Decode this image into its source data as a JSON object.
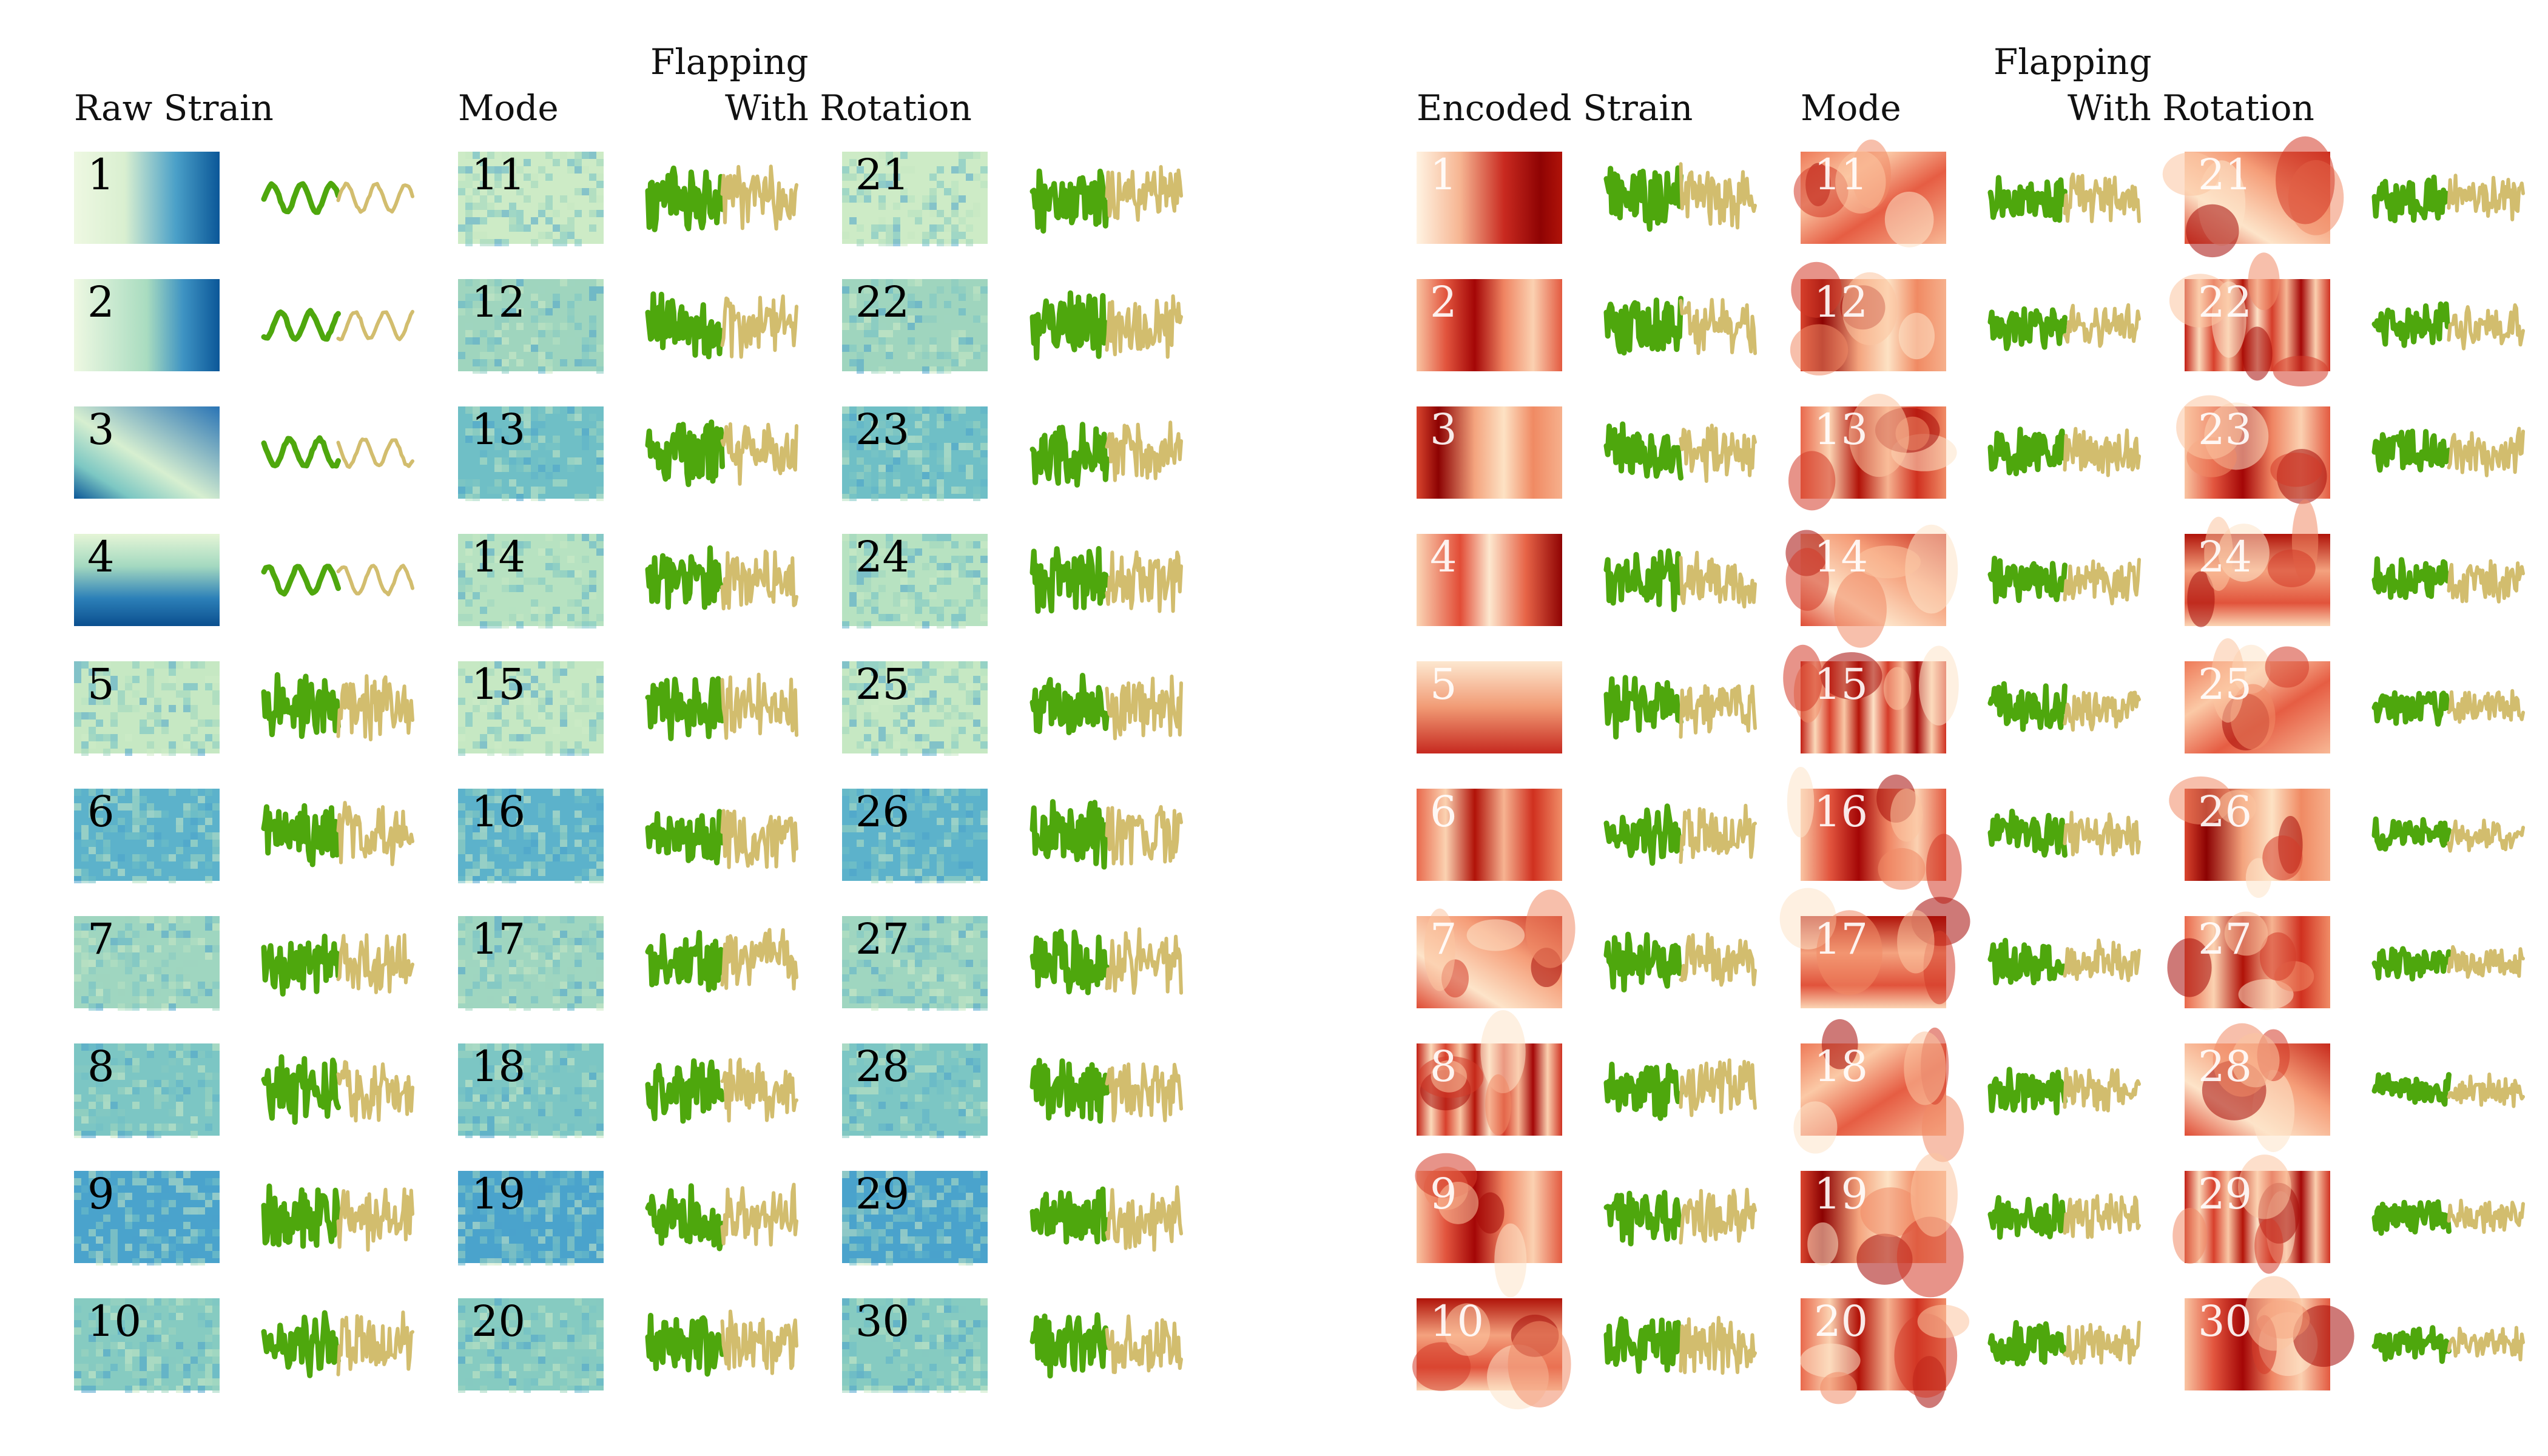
{
  "left_panel": {
    "title_raw": "Raw Strain",
    "title_mode": "Mode",
    "title_flapping": "Flapping",
    "title_rotation": "With Rotation",
    "mode_numbers": [
      "1",
      "2",
      "3",
      "4",
      "5",
      "6",
      "7",
      "8",
      "9",
      "10",
      "11",
      "12",
      "13",
      "14",
      "15",
      "16",
      "17",
      "18",
      "19",
      "20",
      "21",
      "22",
      "23",
      "24",
      "25",
      "26",
      "27",
      "28",
      "29",
      "30"
    ],
    "colormap": "YlGnBu-like (pale green to dark blue)"
  },
  "right_panel": {
    "title_encoded": "Encoded Strain",
    "title_mode": "Mode",
    "title_flapping": "Flapping",
    "title_rotation": "With Rotation",
    "mode_numbers": [
      "1",
      "2",
      "3",
      "4",
      "5",
      "6",
      "7",
      "8",
      "9",
      "10",
      "11",
      "12",
      "13",
      "14",
      "15",
      "16",
      "17",
      "18",
      "19",
      "20",
      "21",
      "22",
      "23",
      "24",
      "25",
      "26",
      "27",
      "28",
      "29",
      "30"
    ],
    "colormap": "OrRd-like (cream to dark red)"
  },
  "colors": {
    "flapping_trace": "#4ea70d",
    "rotation_trace": "#d2bd6e",
    "raw_light": "#e8f5d6",
    "raw_mid": "#61b6c9",
    "raw_dark": "#0b5798",
    "enc_light": "#fff0dc",
    "enc_mid": "#ea6b52",
    "enc_dark": "#980404"
  }
}
